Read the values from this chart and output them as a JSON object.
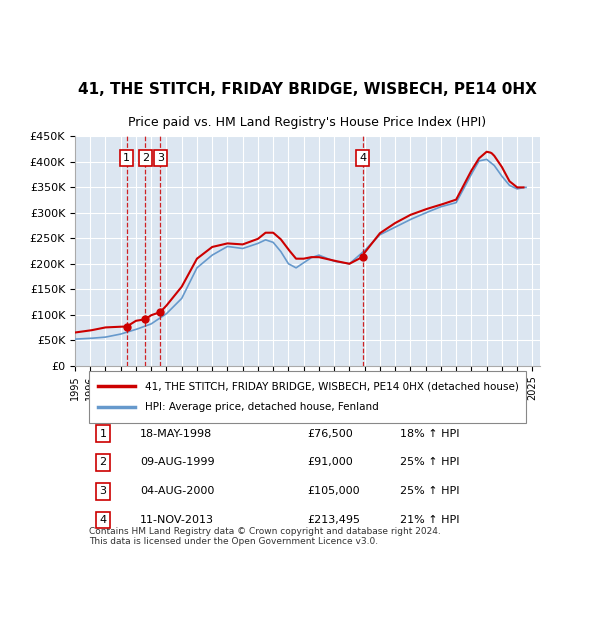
{
  "title": "41, THE STITCH, FRIDAY BRIDGE, WISBECH, PE14 0HX",
  "subtitle": "Price paid vs. HM Land Registry's House Price Index (HPI)",
  "legend_line1": "41, THE STITCH, FRIDAY BRIDGE, WISBECH, PE14 0HX (detached house)",
  "legend_line2": "HPI: Average price, detached house, Fenland",
  "footer": "Contains HM Land Registry data © Crown copyright and database right 2024.\nThis data is licensed under the Open Government Licence v3.0.",
  "ylim": [
    0,
    450000
  ],
  "yticks": [
    0,
    50000,
    100000,
    150000,
    200000,
    250000,
    300000,
    350000,
    400000,
    450000
  ],
  "xlim_start": 1995.0,
  "xlim_end": 2025.5,
  "plot_bg_color": "#dce6f1",
  "red_color": "#cc0000",
  "blue_color": "#6699cc",
  "grid_color": "#ffffff",
  "sales": [
    {
      "num": 1,
      "date": "18-MAY-1998",
      "price": 76500,
      "year": 1998.38,
      "pct": "18%",
      "dir": "↑"
    },
    {
      "num": 2,
      "date": "09-AUG-1999",
      "price": 91000,
      "year": 1999.61,
      "pct": "25%",
      "dir": "↑"
    },
    {
      "num": 3,
      "date": "04-AUG-2000",
      "price": 105000,
      "year": 2000.59,
      "pct": "25%",
      "dir": "↑"
    },
    {
      "num": 4,
      "date": "11-NOV-2013",
      "price": 213495,
      "year": 2013.86,
      "pct": "21%",
      "dir": "↑"
    }
  ]
}
